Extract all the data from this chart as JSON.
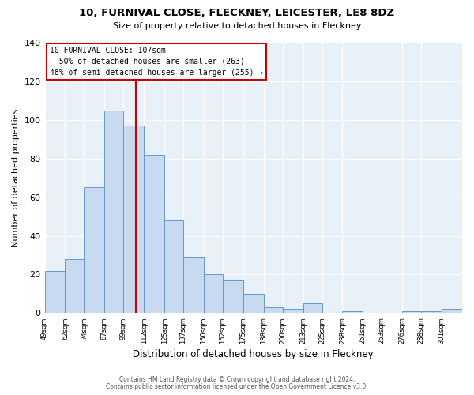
{
  "title": "10, FURNIVAL CLOSE, FLECKNEY, LEICESTER, LE8 8DZ",
  "subtitle": "Size of property relative to detached houses in Fleckney",
  "xlabel": "Distribution of detached houses by size in Fleckney",
  "ylabel": "Number of detached properties",
  "bar_color": "#c8daf0",
  "bar_edge_color": "#6699cc",
  "bg_color": "#e8f0f8",
  "fig_bg_color": "#ffffff",
  "grid_color": "#ffffff",
  "vline_x": 107,
  "vline_color": "#cc0000",
  "annotation_line1": "10 FURNIVAL CLOSE: 107sqm",
  "annotation_line2": "← 50% of detached houses are smaller (263)",
  "annotation_line3": "48% of semi-detached houses are larger (255) →",
  "annotation_box_facecolor": "#ffffff",
  "annotation_box_edgecolor": "#cc0000",
  "bins_left": [
    49,
    62,
    74,
    87,
    99,
    112,
    125,
    137,
    150,
    162,
    175,
    188,
    200,
    213,
    225,
    238,
    251,
    263,
    276,
    288,
    301
  ],
  "bar_heights": [
    22,
    28,
    65,
    105,
    97,
    82,
    48,
    29,
    20,
    17,
    10,
    3,
    2,
    5,
    0,
    1,
    0,
    0,
    1,
    1,
    2
  ],
  "ylim": [
    0,
    140
  ],
  "xlim": [
    49,
    314
  ],
  "yticks": [
    0,
    20,
    40,
    60,
    80,
    100,
    120,
    140
  ],
  "xtick_labels": [
    "49sqm",
    "62sqm",
    "74sqm",
    "87sqm",
    "99sqm",
    "112sqm",
    "125sqm",
    "137sqm",
    "150sqm",
    "162sqm",
    "175sqm",
    "188sqm",
    "200sqm",
    "213sqm",
    "225sqm",
    "238sqm",
    "251sqm",
    "263sqm",
    "276sqm",
    "288sqm",
    "301sqm"
  ],
  "footer1": "Contains HM Land Registry data © Crown copyright and database right 2024.",
  "footer2": "Contains public sector information licensed under the Open Government Licence v3.0."
}
